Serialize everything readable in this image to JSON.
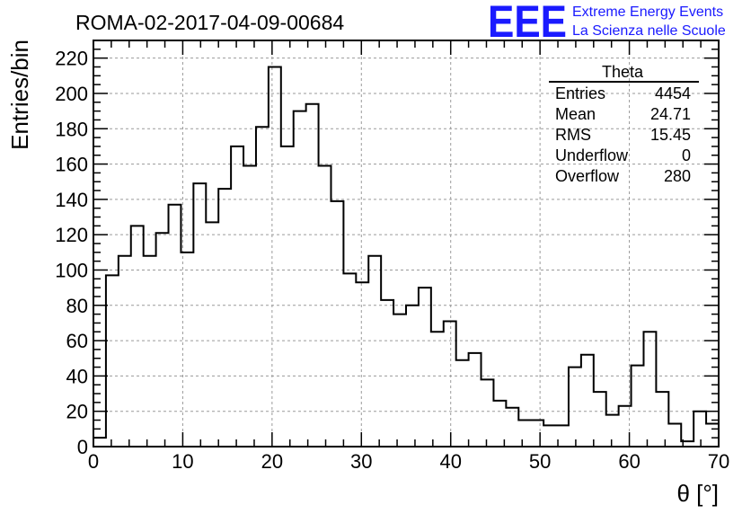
{
  "chart_data": {
    "type": "bar",
    "title": "ROMA-02-2017-04-09-00684",
    "xlabel": "θ [°]",
    "ylabel": "Entries/bin",
    "xlim": [
      0,
      70
    ],
    "ylim": [
      0,
      230
    ],
    "x_ticks": [
      0,
      10,
      20,
      30,
      40,
      50,
      60,
      70
    ],
    "y_ticks": [
      0,
      20,
      40,
      60,
      80,
      100,
      120,
      140,
      160,
      180,
      200,
      220
    ],
    "grid": true,
    "bin_width": 1.4,
    "values": [
      5,
      97,
      108,
      125,
      108,
      121,
      137,
      110,
      149,
      127,
      146,
      170,
      159,
      181,
      215,
      170,
      190,
      194,
      159,
      139,
      98,
      93,
      108,
      83,
      75,
      80,
      90,
      65,
      71,
      49,
      53,
      38,
      26,
      22,
      15,
      15,
      12,
      12,
      45,
      52,
      31,
      18,
      23,
      46,
      65,
      31,
      13,
      3,
      20,
      13
    ]
  },
  "stats_box": {
    "name": "Theta",
    "rows": [
      {
        "label": "Entries",
        "value": "4454"
      },
      {
        "label": "Mean",
        "value": "24.71"
      },
      {
        "label": "RMS",
        "value": "15.45"
      },
      {
        "label": "Underflow",
        "value": "0"
      },
      {
        "label": "Overflow",
        "value": "280"
      }
    ]
  },
  "logo": {
    "mark": "EEE",
    "line1": "Extreme Energy Events",
    "line2": "La Scienza nelle Scuole",
    "color": "#1a1aff"
  }
}
